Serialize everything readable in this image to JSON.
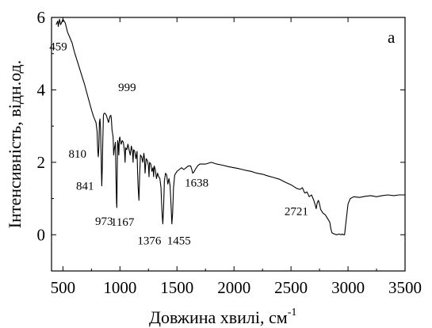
{
  "chart_data": {
    "type": "line",
    "title": "",
    "panel_label": "a",
    "xlabel": "Довжина хвилі, см",
    "xlabel_superscript": "-1",
    "ylabel": "Інтенсивність, відн.од.",
    "xlim": [
      400,
      3500
    ],
    "ylim": [
      -1,
      6
    ],
    "xticks": [
      500,
      1000,
      1500,
      2000,
      2500,
      3000,
      3500
    ],
    "yticks": [
      0,
      2,
      4,
      6
    ],
    "grid": false,
    "legend": "none",
    "line_color": "#000000",
    "series": [
      {
        "x": [
          440,
          455,
          459,
          470,
          480,
          500,
          520,
          540,
          560,
          580,
          600,
          630,
          660,
          690,
          720,
          750,
          770,
          790,
          800,
          805,
          810,
          815,
          820,
          825,
          830,
          835,
          838,
          841,
          845,
          850,
          855,
          860,
          870,
          880,
          890,
          900,
          910,
          920,
          925,
          930,
          940,
          945,
          950,
          960,
          965,
          970,
          973,
          976,
          980,
          985,
          990,
          995,
          999,
          1003,
          1010,
          1020,
          1030,
          1040,
          1045,
          1050,
          1060,
          1070,
          1080,
          1090,
          1100,
          1110,
          1115,
          1120,
          1130,
          1140,
          1150,
          1155,
          1160,
          1167,
          1172,
          1180,
          1190,
          1200,
          1210,
          1215,
          1220,
          1230,
          1240,
          1250,
          1255,
          1260,
          1270,
          1280,
          1290,
          1295,
          1300,
          1310,
          1320,
          1330,
          1340,
          1350,
          1360,
          1365,
          1370,
          1376,
          1382,
          1390,
          1400,
          1410,
          1420,
          1430,
          1440,
          1448,
          1455,
          1462,
          1470,
          1480,
          1490,
          1500,
          1520,
          1540,
          1560,
          1580,
          1600,
          1620,
          1630,
          1638,
          1646,
          1660,
          1680,
          1700,
          1750,
          1800,
          1850,
          1900,
          1950,
          2000,
          2050,
          2100,
          2150,
          2200,
          2250,
          2300,
          2350,
          2400,
          2450,
          2500,
          2550,
          2580,
          2600,
          2620,
          2640,
          2660,
          2680,
          2700,
          2710,
          2721,
          2730,
          2740,
          2750,
          2760,
          2780,
          2800,
          2820,
          2840,
          2850,
          2860,
          2880,
          2900,
          2920,
          2940,
          2950,
          2960,
          2970,
          2980,
          3000,
          3020,
          3050,
          3100,
          3150,
          3200,
          3250,
          3300,
          3350,
          3400,
          3450,
          3500
        ],
        "y": [
          5.8,
          5.9,
          5.75,
          5.95,
          5.8,
          5.95,
          5.85,
          5.6,
          5.45,
          5.3,
          5.05,
          4.75,
          4.45,
          4.15,
          3.8,
          3.45,
          3.25,
          3.1,
          2.85,
          2.35,
          2.15,
          2.4,
          3.1,
          3.2,
          2.9,
          2.2,
          1.7,
          1.35,
          1.8,
          2.6,
          3.3,
          3.35,
          3.35,
          3.3,
          3.2,
          3.1,
          3.25,
          3.3,
          3.2,
          2.9,
          2.7,
          2.2,
          2.35,
          2.55,
          1.6,
          0.9,
          0.75,
          1.8,
          2.6,
          2.5,
          2.2,
          2.65,
          2.7,
          2.6,
          2.5,
          2.6,
          2.55,
          2.3,
          2.0,
          2.4,
          2.35,
          2.5,
          2.35,
          2.2,
          2.45,
          2.3,
          2.0,
          2.35,
          2.3,
          2.1,
          2.3,
          1.7,
          1.3,
          0.95,
          1.6,
          2.2,
          2.15,
          2.0,
          2.25,
          2.1,
          1.7,
          2.1,
          2.05,
          1.9,
          1.6,
          2.0,
          1.95,
          1.75,
          1.85,
          1.6,
          1.9,
          1.8,
          1.55,
          1.7,
          1.6,
          1.55,
          1.3,
          0.9,
          0.55,
          0.3,
          0.7,
          1.5,
          1.7,
          1.65,
          1.4,
          1.55,
          1.35,
          0.8,
          0.3,
          0.6,
          1.3,
          1.65,
          1.7,
          1.75,
          1.8,
          1.85,
          1.8,
          1.85,
          1.9,
          1.9,
          1.8,
          1.7,
          1.72,
          1.8,
          1.9,
          1.95,
          1.95,
          2.0,
          1.95,
          1.92,
          1.88,
          1.85,
          1.82,
          1.78,
          1.75,
          1.7,
          1.67,
          1.62,
          1.58,
          1.53,
          1.45,
          1.38,
          1.28,
          1.25,
          1.3,
          1.15,
          1.18,
          1.05,
          1.1,
          0.95,
          0.85,
          0.72,
          0.88,
          0.95,
          0.85,
          0.7,
          0.6,
          0.55,
          0.45,
          0.35,
          0.15,
          0.05,
          0.02,
          0.0,
          0.02,
          0.0,
          0.02,
          0.0,
          0.0,
          0.3,
          0.85,
          1.0,
          1.05,
          1.03,
          1.06,
          1.08,
          1.05,
          1.08,
          1.1,
          1.08,
          1.1,
          1.1
        ]
      }
    ],
    "annotations": [
      {
        "text": "459",
        "x": 459,
        "y": 5.75
      },
      {
        "text": "810",
        "x": 810,
        "y": 2.15
      },
      {
        "text": "999",
        "x": 999,
        "y": 2.7
      },
      {
        "text": "841",
        "x": 841,
        "y": 1.35
      },
      {
        "text": "973",
        "x": 973,
        "y": 0.75
      },
      {
        "text": "1167",
        "x": 1167,
        "y": 0.95
      },
      {
        "text": "1376",
        "x": 1376,
        "y": 0.3
      },
      {
        "text": "1455",
        "x": 1455,
        "y": 0.3
      },
      {
        "text": "1638",
        "x": 1638,
        "y": 1.7
      },
      {
        "text": "2721",
        "x": 2721,
        "y": 0.72
      }
    ]
  }
}
